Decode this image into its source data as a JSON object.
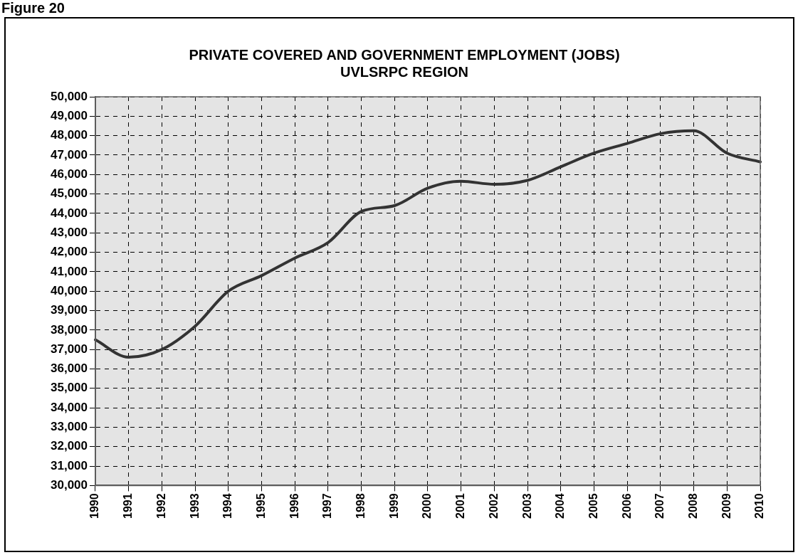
{
  "chart_data": {
    "type": "line",
    "title": [
      "PRIVATE COVERED AND GOVERNMENT EMPLOYMENT (JOBS)",
      "UVLSRPC REGION"
    ],
    "annotations": [
      "Figure 20"
    ],
    "categories": [
      "1990",
      "1991",
      "1992",
      "1993",
      "1994",
      "1995",
      "1996",
      "1997",
      "1998",
      "1999",
      "2000",
      "2001",
      "2002",
      "2003",
      "2004",
      "2005",
      "2006",
      "2007",
      "2008",
      "2009",
      "2010"
    ],
    "series": [
      {
        "color": "#333333",
        "values": [
          37500,
          36600,
          37000,
          38200,
          40000,
          40800,
          41700,
          42500,
          44100,
          44400,
          45300,
          45650,
          45500,
          45700,
          46400,
          47100,
          47600,
          48100,
          48250,
          47100,
          46650
        ]
      }
    ],
    "ylim": [
      30000,
      50000
    ],
    "yticks": [
      {
        "value": 30000,
        "label": "30,000"
      },
      {
        "value": 31000,
        "label": "31,000"
      },
      {
        "value": 32000,
        "label": "32,000"
      },
      {
        "value": 33000,
        "label": "33,000"
      },
      {
        "value": 34000,
        "label": "34,000"
      },
      {
        "value": 35000,
        "label": "35,000"
      },
      {
        "value": 36000,
        "label": "36,000"
      },
      {
        "value": 37000,
        "label": "37,000"
      },
      {
        "value": 38000,
        "label": "38,000"
      },
      {
        "value": 39000,
        "label": "39,000"
      },
      {
        "value": 40000,
        "label": "40,000"
      },
      {
        "value": 41000,
        "label": "41,000"
      },
      {
        "value": 42000,
        "label": "42,000"
      },
      {
        "value": 43000,
        "label": "43,000"
      },
      {
        "value": 44000,
        "label": "44,000"
      },
      {
        "value": 45000,
        "label": "45,000"
      },
      {
        "value": 46000,
        "label": "46,000"
      },
      {
        "value": 47000,
        "label": "47,000"
      },
      {
        "value": 48000,
        "label": "48,000"
      },
      {
        "value": 49000,
        "label": "49,000"
      },
      {
        "value": 50000,
        "label": "50,000"
      }
    ],
    "grid": true,
    "legend": false,
    "marker": "none",
    "line_style": "solid"
  }
}
